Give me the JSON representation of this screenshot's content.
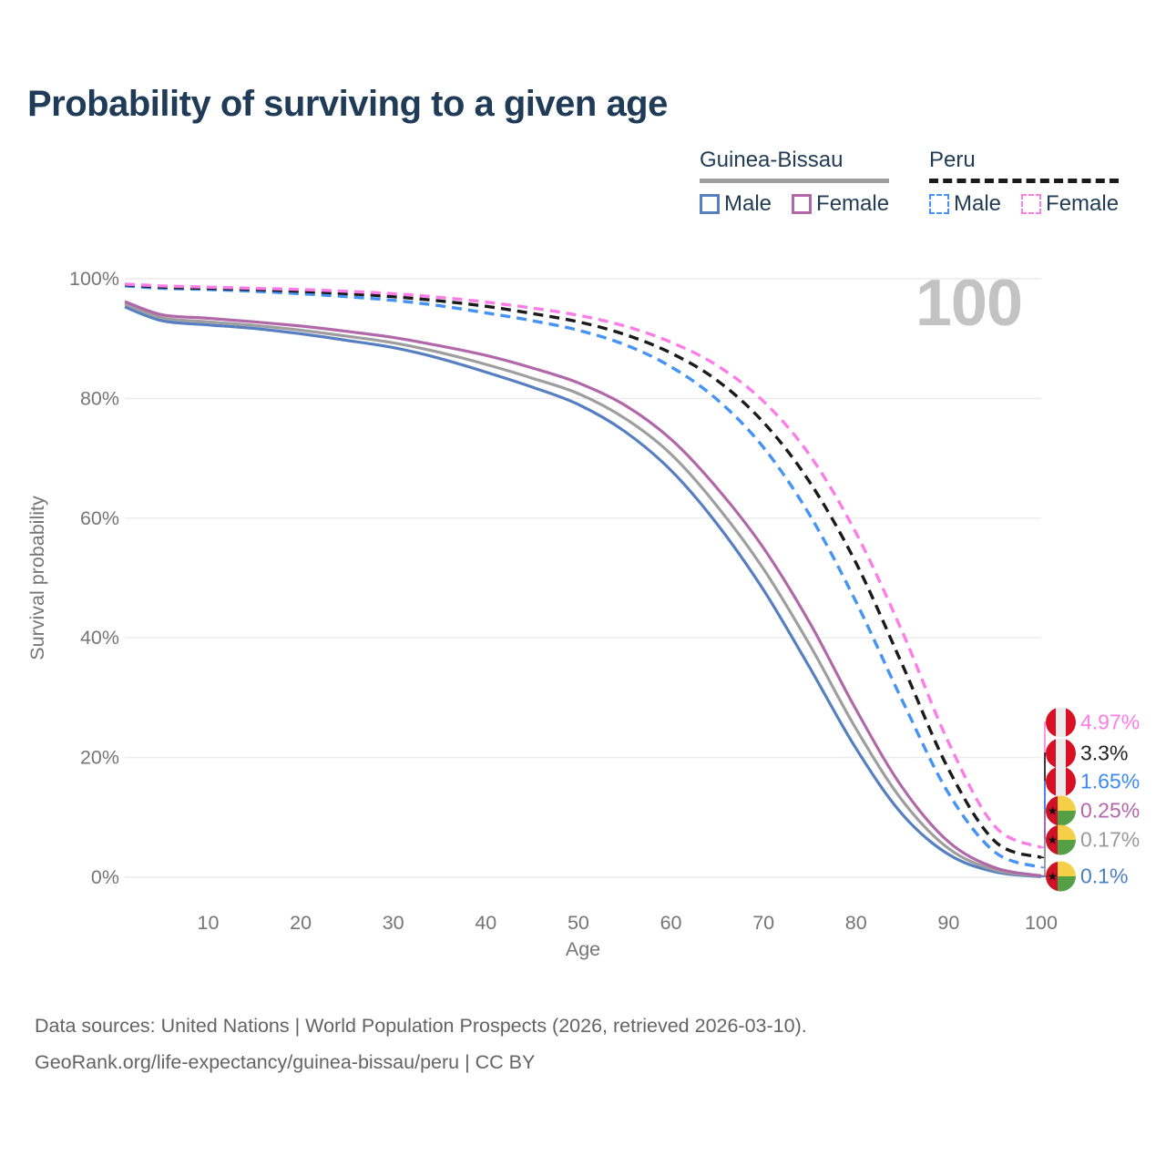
{
  "title": "Probability of surviving to a given age",
  "legend": {
    "groups": [
      {
        "label": "Guinea-Bissau",
        "line_style": "solid",
        "underline_color": "#9e9e9e",
        "items": [
          {
            "label": "Male",
            "color": "#567fc1"
          },
          {
            "label": "Female",
            "color": "#b168a9"
          }
        ]
      },
      {
        "label": "Peru",
        "line_style": "dashed",
        "underline_color": "#1a1a1a",
        "items": [
          {
            "label": "Male",
            "color": "#4593f5"
          },
          {
            "label": "Female",
            "color": "#fd7de8"
          }
        ]
      }
    ]
  },
  "footer": {
    "line1": "Data sources: United Nations | World Population Prospects (2026, retrieved 2026-03-10).",
    "line2": "GeoRank.org/life-expectancy/guinea-bissau/peru | CC BY"
  },
  "flags": {
    "peru": {
      "red": "#D91023",
      "white": "#ececec"
    },
    "guinea_bissau": {
      "red": "#CE1126",
      "yellow": "#F6CF4A",
      "green": "#55A047",
      "star": "#111111"
    }
  },
  "chart_data": {
    "type": "line",
    "title": "Probability of surviving to a given age",
    "xlabel": "Age",
    "ylabel": "Survival probability",
    "xlim": [
      1,
      100
    ],
    "ylim": [
      0,
      100
    ],
    "grid": "horizontal-only",
    "gridline_color": "#ebebeb",
    "axis_text_color": "#757575",
    "x_ticks": [
      10,
      20,
      30,
      40,
      50,
      60,
      70,
      80,
      90,
      100
    ],
    "y_ticks": [
      0,
      20,
      40,
      60,
      80,
      100
    ],
    "y_tick_labels": [
      "0%",
      "20%",
      "40%",
      "60%",
      "80%",
      "100%"
    ],
    "hover_age_label": "100",
    "x": [
      1,
      5,
      10,
      15,
      20,
      25,
      30,
      35,
      40,
      45,
      50,
      55,
      60,
      65,
      70,
      75,
      80,
      85,
      90,
      95,
      100
    ],
    "series": [
      {
        "name": "Guinea-Bissau Male",
        "country": "guinea_bissau",
        "sex": "male",
        "style": "solid",
        "color": "#567fc1",
        "values": [
          95.3,
          93.0,
          92.3,
          91.7,
          90.8,
          89.7,
          88.5,
          86.7,
          84.4,
          81.9,
          79.0,
          74.5,
          68.0,
          59.0,
          48.0,
          35.0,
          21.5,
          10.5,
          3.8,
          0.9,
          0.1
        ],
        "end_label": "0.1%"
      },
      {
        "name": "Guinea-Bissau",
        "country": "guinea_bissau",
        "sex": "both",
        "style": "solid",
        "color": "#9e9e9e",
        "values": [
          95.8,
          93.5,
          92.8,
          92.2,
          91.4,
          90.4,
          89.3,
          87.7,
          85.7,
          83.4,
          80.8,
          76.7,
          70.7,
          62.0,
          51.5,
          38.8,
          24.8,
          12.8,
          4.8,
          1.2,
          0.17
        ],
        "end_label": "0.17%"
      },
      {
        "name": "Guinea-Bissau Female",
        "country": "guinea_bissau",
        "sex": "female",
        "style": "solid",
        "color": "#b168a9",
        "values": [
          96.2,
          94.0,
          93.4,
          92.8,
          92.1,
          91.2,
          90.2,
          88.8,
          87.2,
          85.1,
          82.6,
          78.9,
          73.2,
          65.0,
          55.0,
          42.5,
          28.0,
          15.0,
          5.9,
          1.6,
          0.25
        ],
        "end_label": "0.25%"
      },
      {
        "name": "Peru Male",
        "country": "peru",
        "sex": "male",
        "style": "dashed",
        "color": "#4593f5",
        "values": [
          98.8,
          98.4,
          98.2,
          97.9,
          97.5,
          97.0,
          96.4,
          95.5,
          94.3,
          93.0,
          91.4,
          89.0,
          85.3,
          79.8,
          71.8,
          60.5,
          46.0,
          29.5,
          14.0,
          4.2,
          1.65
        ],
        "end_label": "1.65%"
      },
      {
        "name": "Peru",
        "country": "peru",
        "sex": "both",
        "style": "dashed",
        "color": "#1a1a1a",
        "values": [
          99.0,
          98.6,
          98.4,
          98.2,
          97.9,
          97.5,
          97.0,
          96.3,
          95.4,
          94.2,
          92.8,
          90.7,
          87.6,
          83.0,
          76.0,
          66.0,
          52.5,
          35.5,
          18.0,
          6.0,
          3.3
        ],
        "end_label": "3.3%"
      },
      {
        "name": "Peru Female",
        "country": "peru",
        "sex": "female",
        "style": "dashed",
        "color": "#fd7de8",
        "values": [
          99.1,
          98.8,
          98.6,
          98.4,
          98.2,
          97.9,
          97.5,
          96.9,
          96.1,
          95.1,
          93.9,
          92.1,
          89.4,
          85.5,
          79.5,
          70.5,
          57.5,
          41.0,
          22.5,
          8.5,
          4.97
        ],
        "end_label": "4.97%"
      }
    ],
    "end_labels": [
      {
        "value": "4.97%",
        "series": "Peru Female",
        "flag": "peru",
        "color": "#fd7de8"
      },
      {
        "value": "3.3%",
        "series": "Peru",
        "flag": "peru",
        "color": "#1f1f1f"
      },
      {
        "value": "1.65%",
        "series": "Peru Male",
        "flag": "peru",
        "color": "#3d8af2"
      },
      {
        "value": "0.25%",
        "series": "Guinea-Bissau Female",
        "flag": "guinea_bissau",
        "color": "#b465ab"
      },
      {
        "value": "0.17%",
        "series": "Guinea-Bissau",
        "flag": "guinea_bissau",
        "color": "#9a9a9a"
      },
      {
        "value": "0.1%",
        "series": "Guinea-Bissau Male",
        "flag": "guinea_bissau",
        "color": "#4a7ec2"
      }
    ],
    "legend_position": "top-right"
  }
}
